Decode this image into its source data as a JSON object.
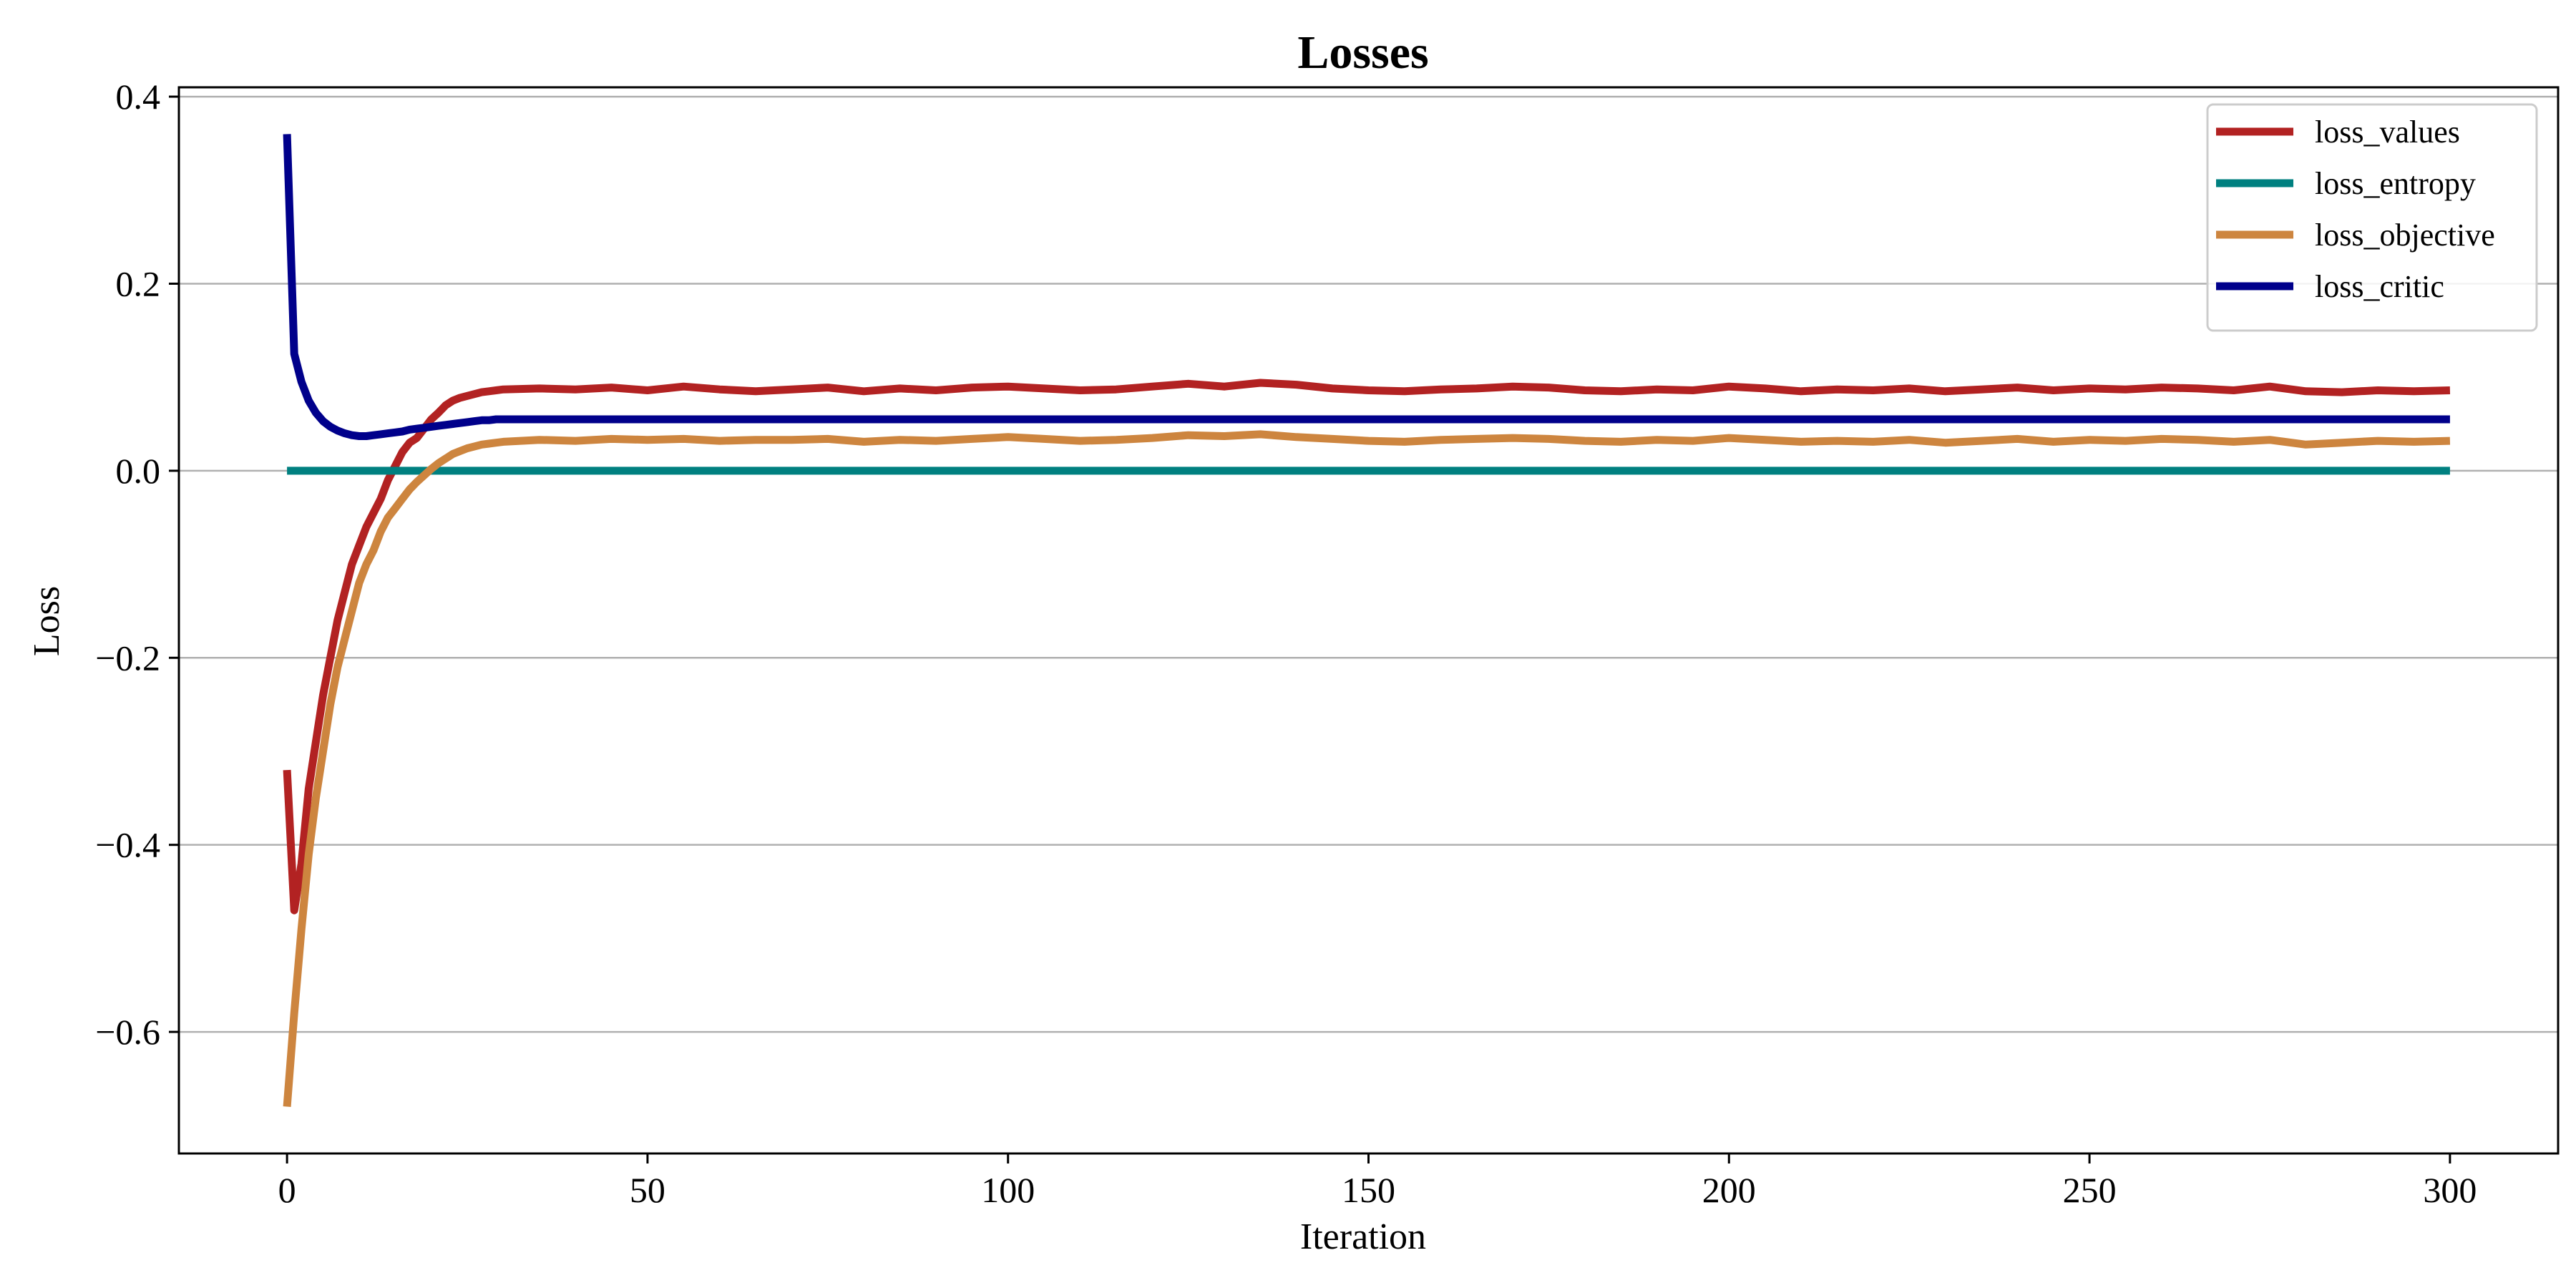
{
  "chart_data": {
    "type": "line",
    "title": "Losses",
    "xlabel": "Iteration",
    "ylabel": "Loss",
    "xlim": [
      -15,
      315
    ],
    "ylim": [
      -0.73,
      0.41
    ],
    "xticks": [
      0,
      50,
      100,
      150,
      200,
      250,
      300
    ],
    "xtick_labels": [
      "0",
      "50",
      "100",
      "150",
      "200",
      "250",
      "300"
    ],
    "yticks": [
      0.4,
      0.2,
      0.0,
      -0.2,
      -0.4,
      -0.6
    ],
    "ytick_labels": [
      "0.4",
      "0.2",
      "0.0",
      "−0.2",
      "−0.4",
      "−0.6"
    ],
    "grid": "horizontal",
    "legend_position": "top-right",
    "x": [
      0,
      1,
      2,
      3,
      4,
      5,
      6,
      7,
      8,
      9,
      10,
      11,
      12,
      13,
      14,
      15,
      16,
      17,
      18,
      19,
      20,
      21,
      22,
      23,
      24,
      25,
      26,
      27,
      28,
      29,
      30,
      35,
      40,
      45,
      50,
      55,
      60,
      65,
      70,
      75,
      80,
      85,
      90,
      95,
      100,
      105,
      110,
      115,
      120,
      125,
      130,
      135,
      140,
      145,
      150,
      155,
      160,
      165,
      170,
      175,
      180,
      185,
      190,
      195,
      200,
      205,
      210,
      215,
      220,
      225,
      230,
      235,
      240,
      245,
      250,
      255,
      260,
      265,
      270,
      275,
      280,
      285,
      290,
      295,
      300
    ],
    "series": [
      {
        "name": "loss_values",
        "color": "#b22222",
        "values": [
          -0.32,
          -0.47,
          -0.42,
          -0.34,
          -0.29,
          -0.24,
          -0.2,
          -0.16,
          -0.13,
          -0.1,
          -0.08,
          -0.06,
          -0.045,
          -0.03,
          -0.01,
          0.005,
          0.02,
          0.03,
          0.035,
          0.045,
          0.055,
          0.062,
          0.07,
          0.075,
          0.078,
          0.08,
          0.082,
          0.084,
          0.085,
          0.086,
          0.087,
          0.088,
          0.087,
          0.089,
          0.086,
          0.09,
          0.087,
          0.085,
          0.087,
          0.089,
          0.085,
          0.088,
          0.086,
          0.089,
          0.09,
          0.088,
          0.086,
          0.087,
          0.09,
          0.093,
          0.09,
          0.094,
          0.092,
          0.088,
          0.086,
          0.085,
          0.087,
          0.088,
          0.09,
          0.089,
          0.086,
          0.085,
          0.087,
          0.086,
          0.09,
          0.088,
          0.085,
          0.087,
          0.086,
          0.088,
          0.085,
          0.087,
          0.089,
          0.086,
          0.088,
          0.087,
          0.089,
          0.088,
          0.086,
          0.09,
          0.085,
          0.084,
          0.086,
          0.085,
          0.086
        ]
      },
      {
        "name": "loss_entropy",
        "color": "#008080",
        "values": [
          0,
          0,
          0,
          0,
          0,
          0,
          0,
          0,
          0,
          0,
          0,
          0,
          0,
          0,
          0,
          0,
          0,
          0,
          0,
          0,
          0,
          0,
          0,
          0,
          0,
          0,
          0,
          0,
          0,
          0,
          0,
          0,
          0,
          0,
          0,
          0,
          0,
          0,
          0,
          0,
          0,
          0,
          0,
          0,
          0,
          0,
          0,
          0,
          0,
          0,
          0,
          0,
          0,
          0,
          0,
          0,
          0,
          0,
          0,
          0,
          0,
          0,
          0,
          0,
          0,
          0,
          0,
          0,
          0,
          0,
          0,
          0,
          0,
          0,
          0,
          0,
          0,
          0,
          0,
          0,
          0,
          0,
          0,
          0,
          0
        ]
      },
      {
        "name": "loss_objective",
        "color": "#cd853f",
        "values": [
          -0.68,
          -0.58,
          -0.49,
          -0.41,
          -0.35,
          -0.3,
          -0.25,
          -0.21,
          -0.18,
          -0.15,
          -0.12,
          -0.1,
          -0.085,
          -0.065,
          -0.05,
          -0.04,
          -0.03,
          -0.02,
          -0.012,
          -0.005,
          0.002,
          0.008,
          0.013,
          0.018,
          0.021,
          0.024,
          0.026,
          0.028,
          0.029,
          0.03,
          0.031,
          0.033,
          0.032,
          0.034,
          0.033,
          0.034,
          0.032,
          0.033,
          0.033,
          0.034,
          0.031,
          0.033,
          0.032,
          0.034,
          0.036,
          0.034,
          0.032,
          0.033,
          0.035,
          0.038,
          0.037,
          0.039,
          0.036,
          0.034,
          0.032,
          0.031,
          0.033,
          0.034,
          0.035,
          0.034,
          0.032,
          0.031,
          0.033,
          0.032,
          0.035,
          0.033,
          0.031,
          0.032,
          0.031,
          0.033,
          0.03,
          0.032,
          0.034,
          0.031,
          0.033,
          0.032,
          0.034,
          0.033,
          0.031,
          0.033,
          0.028,
          0.03,
          0.032,
          0.031,
          0.032
        ]
      },
      {
        "name": "loss_critic",
        "color": "#00008b",
        "values": [
          0.36,
          0.125,
          0.095,
          0.075,
          0.062,
          0.053,
          0.047,
          0.043,
          0.04,
          0.038,
          0.037,
          0.037,
          0.038,
          0.039,
          0.04,
          0.041,
          0.042,
          0.044,
          0.045,
          0.046,
          0.047,
          0.048,
          0.049,
          0.05,
          0.051,
          0.052,
          0.053,
          0.054,
          0.054,
          0.055,
          0.055,
          0.055,
          0.055,
          0.055,
          0.055,
          0.055,
          0.055,
          0.055,
          0.055,
          0.055,
          0.055,
          0.055,
          0.055,
          0.055,
          0.055,
          0.055,
          0.055,
          0.055,
          0.055,
          0.055,
          0.055,
          0.055,
          0.055,
          0.055,
          0.055,
          0.055,
          0.055,
          0.055,
          0.055,
          0.055,
          0.055,
          0.055,
          0.055,
          0.055,
          0.055,
          0.055,
          0.055,
          0.055,
          0.055,
          0.055,
          0.055,
          0.055,
          0.055,
          0.055,
          0.055,
          0.055,
          0.055,
          0.055,
          0.055,
          0.055,
          0.055,
          0.055,
          0.055,
          0.055,
          0.055
        ]
      }
    ]
  }
}
